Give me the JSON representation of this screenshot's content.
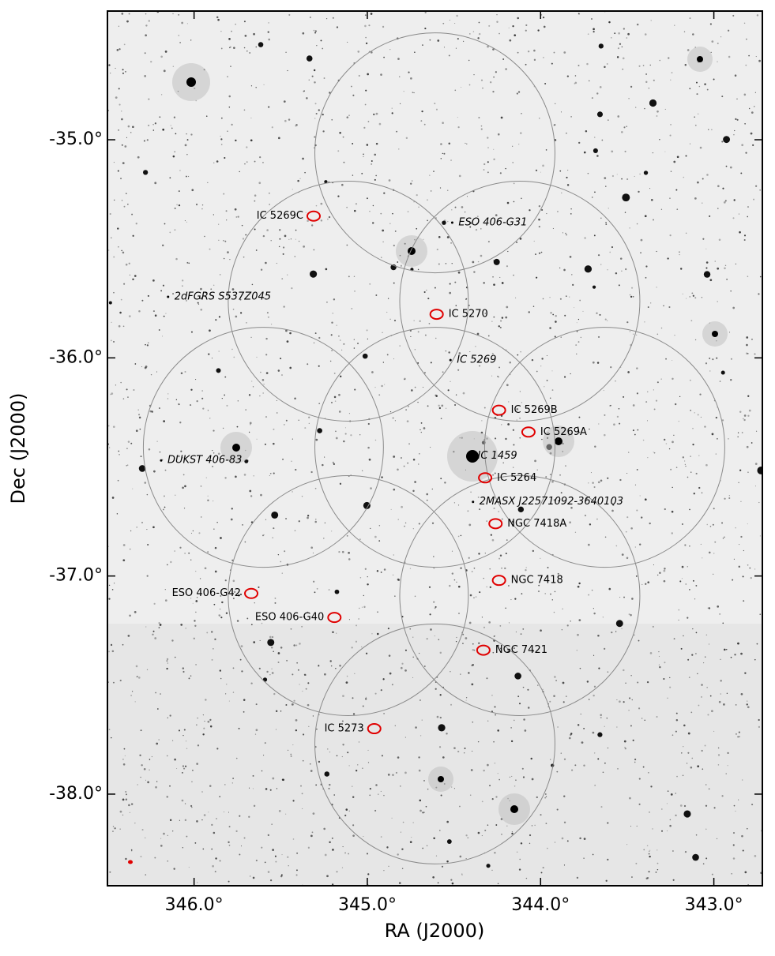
{
  "chart_data": {
    "type": "sky",
    "x_label": "RA (J2000)",
    "y_label": "Dec (J2000)",
    "xlim": [
      346.5,
      342.72
    ],
    "ylim": [
      -38.42,
      -34.41
    ],
    "xticks": [
      {
        "value": 346,
        "label": "346.0°"
      },
      {
        "value": 345,
        "label": "345.0°"
      },
      {
        "value": 344,
        "label": "344.0°"
      },
      {
        "value": 343,
        "label": "343.0°"
      }
    ],
    "yticks": [
      {
        "value": -35,
        "label": "-35.0°"
      },
      {
        "value": -36,
        "label": "-36.0°"
      },
      {
        "value": -37,
        "label": "-37.0°"
      },
      {
        "value": -38,
        "label": "-38.0°"
      }
    ],
    "pointings": {
      "color": "#8a8a8a",
      "radius": 0.55,
      "ra": [
        344.61,
        345.11,
        344.12,
        345.6,
        344.61,
        343.63,
        345.11,
        344.12,
        344.61
      ],
      "dec": [
        -35.06,
        -35.74,
        -35.74,
        -36.41,
        -36.41,
        -36.41,
        -37.09,
        -37.09,
        -37.77
      ]
    },
    "detections": {
      "color": "#e00000",
      "names": [
        "IC 5269C",
        "IC 5270",
        "IC 5269B",
        "IC 5269A",
        "IC 5264",
        "NGC 7418A",
        "NGC 7418",
        "NGC 7421",
        "ESO 406-G42",
        "ESO 406-G40",
        "IC 5273"
      ],
      "ra": [
        345.31,
        344.6,
        344.24,
        344.07,
        344.32,
        344.26,
        344.24,
        344.33,
        345.67,
        345.19,
        344.96
      ],
      "dec": [
        -35.35,
        -35.8,
        -36.24,
        -36.34,
        -36.55,
        -36.76,
        -37.02,
        -37.34,
        -37.08,
        -37.19,
        -37.7
      ]
    },
    "non_detections": {
      "names": [
        "ESO 406-G31",
        "2dFGRS S537Z045",
        "IC 5269",
        "IC 1459",
        "DUKST 406-83",
        "2MASX J22571092-3640103"
      ],
      "ra": [
        344.51,
        346.15,
        344.52,
        344.4,
        346.19,
        344.39
      ],
      "dec": [
        -35.38,
        -35.72,
        -36.01,
        -36.45,
        -36.47,
        -36.66
      ]
    }
  }
}
